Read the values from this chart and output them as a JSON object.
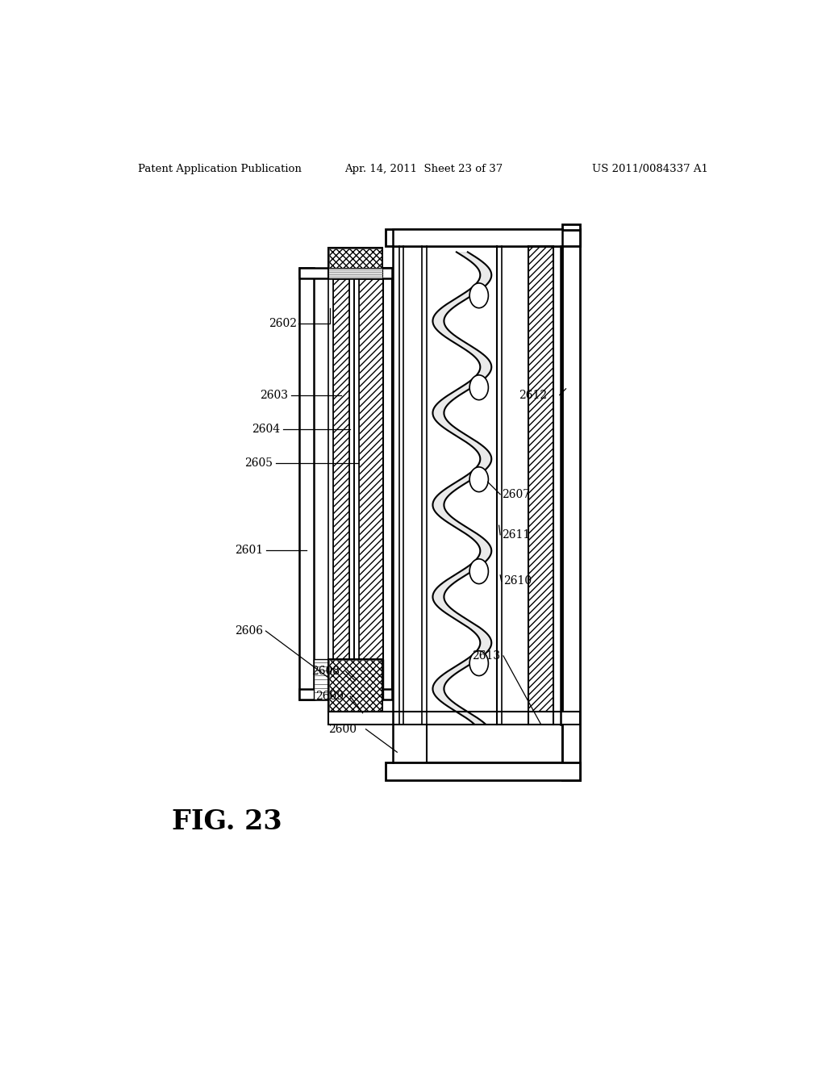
{
  "title_left": "Patent Application Publication",
  "title_center": "Apr. 14, 2011  Sheet 23 of 37",
  "title_right": "US 2011/0084337 A1",
  "fig_label": "FIG. 23",
  "background": "#ffffff"
}
